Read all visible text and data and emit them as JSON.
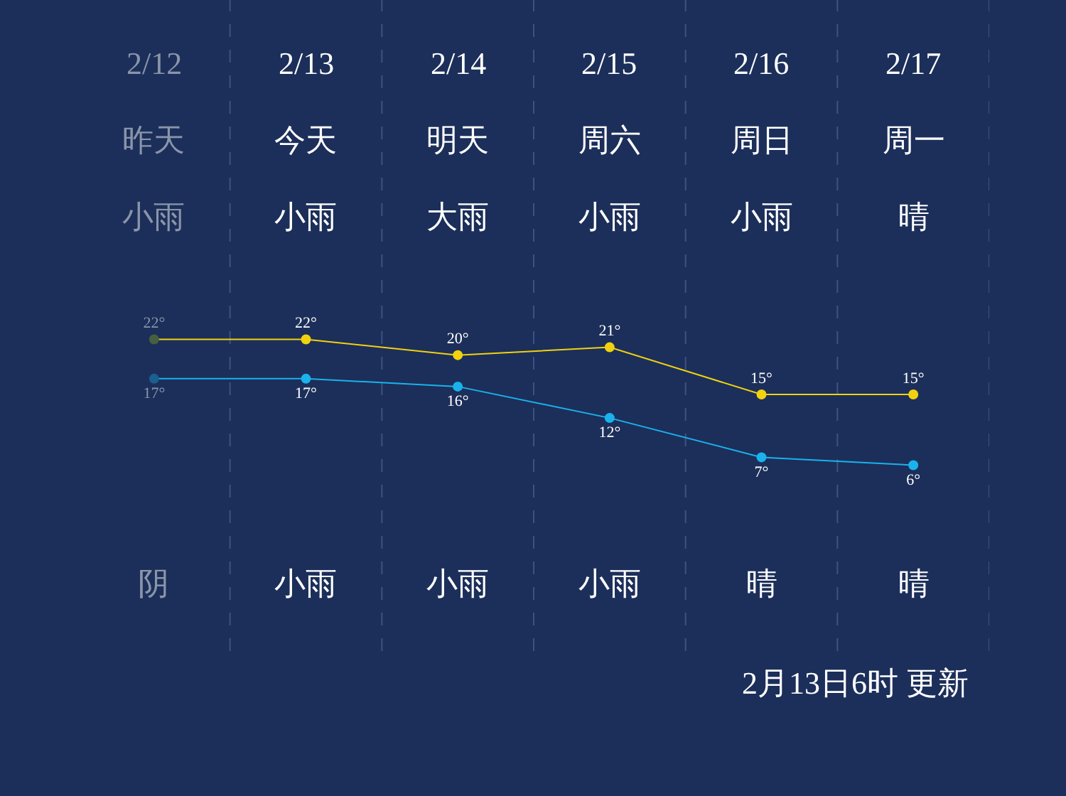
{
  "chart_data": {
    "type": "line",
    "categories": [
      "2/12",
      "2/13",
      "2/14",
      "2/15",
      "2/16",
      "2/17"
    ],
    "series": [
      {
        "color": "#f2d20f",
        "colors": [
          "#46603f",
          "#f2d20f",
          "#f2d20f",
          "#f2d20f",
          "#f2d20f",
          "#f2d20f"
        ],
        "values": [
          22,
          22,
          20,
          21,
          15,
          15
        ],
        "value_labels": [
          "22°",
          "22°",
          "20°",
          "21°",
          "15°",
          "15°"
        ]
      },
      {
        "color": "#1ab2ec",
        "colors": [
          "#1b5f8e",
          "#1ab2ec",
          "#1ab2ec",
          "#1ab2ec",
          "#1ab2ec",
          "#1ab2ec"
        ],
        "values": [
          17,
          17,
          16,
          12,
          7,
          6
        ],
        "value_labels": [
          "17°",
          "17°",
          "16°",
          "12°",
          "7°",
          "6°"
        ]
      }
    ],
    "tick_labels": false,
    "grid": false,
    "legend": false,
    "marker": "circle",
    "line_style": "solid",
    "annotations": [
      "昨天",
      "今天",
      "明天",
      "周六",
      "周日",
      "周一",
      "小雨",
      "小雨",
      "大雨",
      "小雨",
      "小雨",
      "晴",
      "阴",
      "小雨",
      "小雨",
      "小雨",
      "晴",
      "晴",
      "2月13日6时 更新"
    ]
  }
}
